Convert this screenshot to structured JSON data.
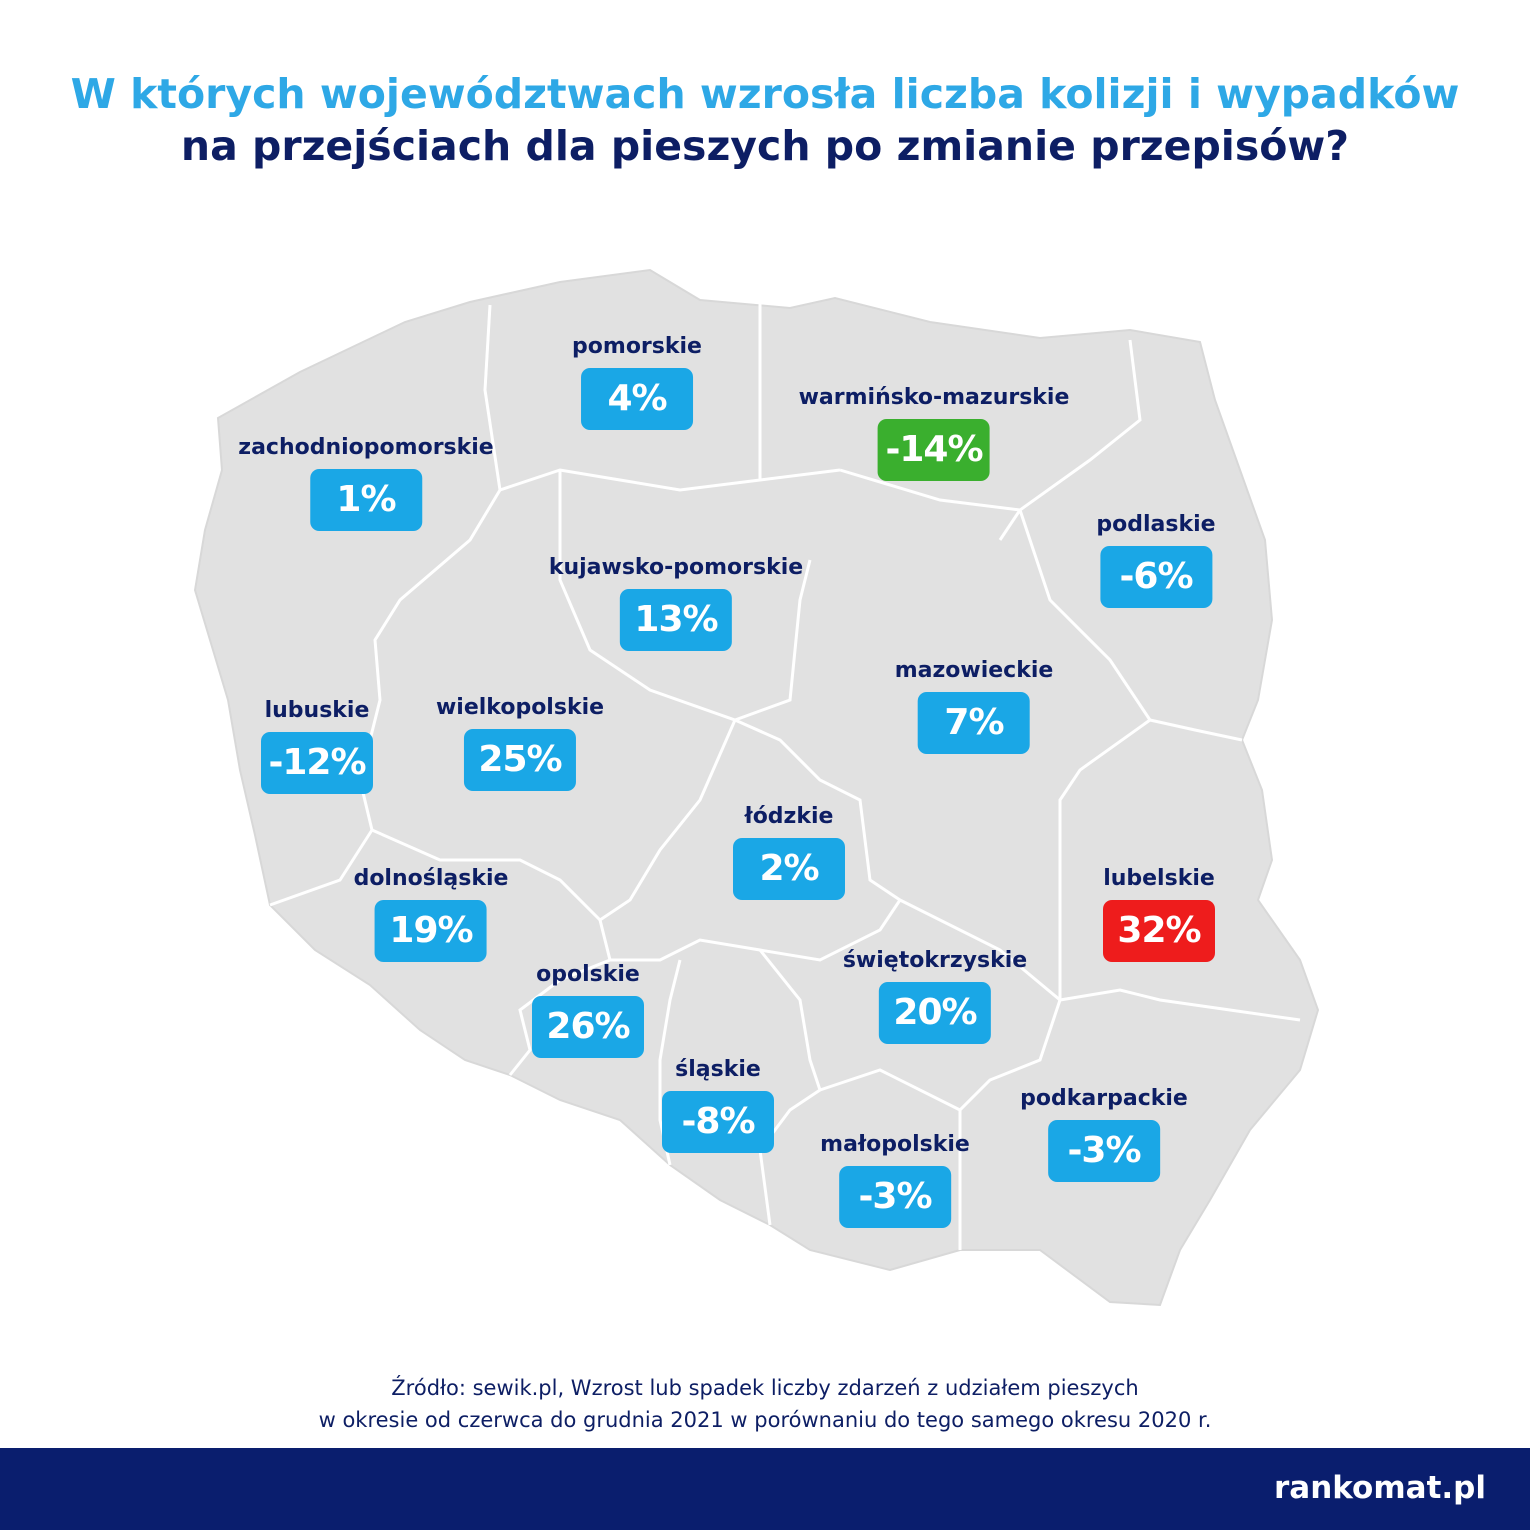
{
  "title": {
    "line1": "W których województwach wzrosła liczba kolizji i wypadków",
    "line2": "na przejściach dla pieszych po zmianie przepisów?"
  },
  "colors": {
    "land": "#e1e1e1",
    "border": "#ffffff",
    "increase": "#1aa7e6",
    "decrease_badge": "#1aa7e6",
    "max": "#ee1c1c",
    "min": "#3aaf2e",
    "title_accent": "#2ea8e6",
    "title_dark": "#0d1e64",
    "footer": "#0a1e6e"
  },
  "regions": [
    {
      "name": "pomorskie",
      "value": "4%",
      "status": "normal"
    },
    {
      "name": "warmińsko-mazurskie",
      "value": "-14%",
      "status": "min"
    },
    {
      "name": "zachodniopomorskie",
      "value": "1%",
      "status": "normal"
    },
    {
      "name": "podlaskie",
      "value": "-6%",
      "status": "normal"
    },
    {
      "name": "kujawsko-pomorskie",
      "value": "13%",
      "status": "normal"
    },
    {
      "name": "mazowieckie",
      "value": "7%",
      "status": "normal"
    },
    {
      "name": "lubuskie",
      "value": "-12%",
      "status": "normal"
    },
    {
      "name": "wielkopolskie",
      "value": "25%",
      "status": "normal"
    },
    {
      "name": "łódzkie",
      "value": "2%",
      "status": "normal"
    },
    {
      "name": "dolnośląskie",
      "value": "19%",
      "status": "normal"
    },
    {
      "name": "lubelskie",
      "value": "32%",
      "status": "max"
    },
    {
      "name": "świętokrzyskie",
      "value": "20%",
      "status": "normal"
    },
    {
      "name": "opolskie",
      "value": "26%",
      "status": "normal"
    },
    {
      "name": "śląskie",
      "value": "-8%",
      "status": "normal"
    },
    {
      "name": "podkarpackie",
      "value": "-3%",
      "status": "normal"
    },
    {
      "name": "małopolskie",
      "value": "-3%",
      "status": "normal"
    }
  ],
  "source": {
    "line1": "Źródło: sewik.pl, Wzrost lub spadek liczby zdarzeń z udziałem pieszych",
    "line2": "w okresie od czerwca do grudnia 2021 w porównaniu do tego samego okresu 2020 r."
  },
  "footer": {
    "logo": "rankomat.pl"
  }
}
